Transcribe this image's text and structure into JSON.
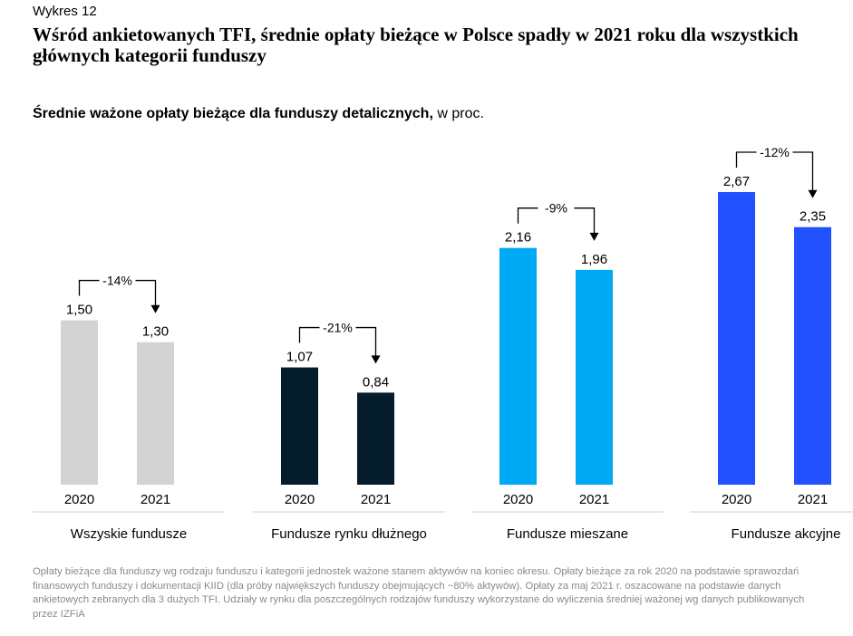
{
  "figure_label": "Wykres 12",
  "title": "Wśród ankietowanych TFI, średnie opłaty bieżące w Polsce spadły w 2021 roku dla wszystkich głównych kategorii funduszy",
  "subtitle_bold": "Średnie ważone opłaty bieżące dla funduszy detalicznych,",
  "subtitle_unit": " w proc.",
  "footnote": "Opłaty bieżące dla funduszy wg rodzaju funduszu i kategorii jednostek ważone stanem aktywów na koniec okresu. Opłaty bieżące za rok 2020 na podstawie sprawozdań finansowych funduszy i dokumentacji KIID (dla próby największych funduszy obejmujących ~80% aktywów). Opłaty za maj 2021 r. oszacowane na podstawie danych ankietowych zebranych dla 3 dużych TFI. Udziały w rynku dla poszczególnych rodzajów funduszy wykorzystane do wyliczenia średniej ważonej wg danych publikowanych przez IZFiA",
  "chart_data": {
    "type": "bar",
    "years": [
      "2020",
      "2021"
    ],
    "ylim": [
      0,
      2.67
    ],
    "groups": [
      {
        "name": "Wszyskie fundusze",
        "values": [
          1.5,
          1.3
        ],
        "value_labels": [
          "1,50",
          "1,30"
        ],
        "change": "-14%",
        "color": "#d3d3d3"
      },
      {
        "name": "Fundusze rynku dłużnego",
        "values": [
          1.07,
          0.84
        ],
        "value_labels": [
          "1,07",
          "0,84"
        ],
        "change": "-21%",
        "color": "#051c2c"
      },
      {
        "name": "Fundusze mieszane",
        "values": [
          2.16,
          1.96
        ],
        "value_labels": [
          "2,16",
          "1,96"
        ],
        "change": "-9%",
        "color": "#00a9f4"
      },
      {
        "name": "Fundusze akcyjne",
        "values": [
          2.67,
          2.35
        ],
        "value_labels": [
          "2,67",
          "2,35"
        ],
        "change": "-12%",
        "color": "#2251ff"
      }
    ]
  }
}
